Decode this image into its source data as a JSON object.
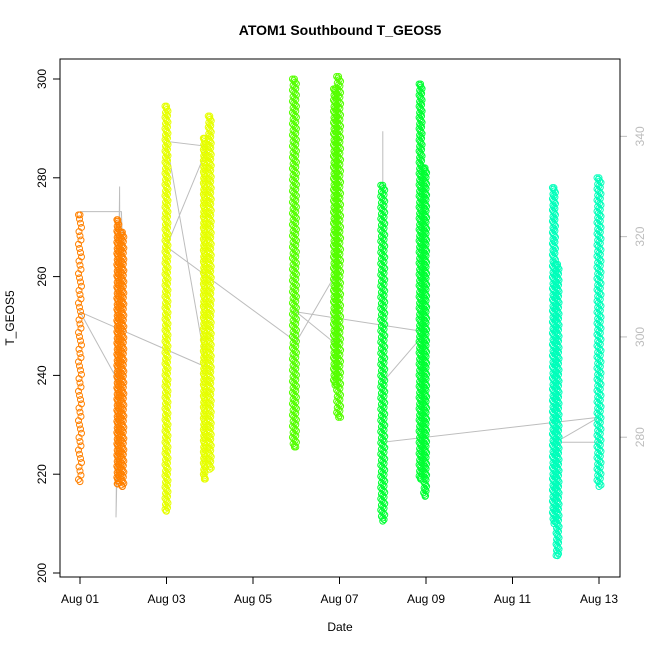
{
  "chart_data": {
    "type": "scatter",
    "title": "ATOM1 Southbound T_GEOS5",
    "xlabel": "Date",
    "ylabel": "T_GEOS5",
    "x_unit": "date (2016)",
    "xlim": [
      "2016-08-01",
      "2016-08-13"
    ],
    "ylim": [
      200,
      300
    ],
    "y2lim": [
      260,
      350
    ],
    "x_ticks": [
      {
        "date": "2016-08-01",
        "label": "Aug 01"
      },
      {
        "date": "2016-08-03",
        "label": "Aug 03"
      },
      {
        "date": "2016-08-05",
        "label": "Aug 05"
      },
      {
        "date": "2016-08-07",
        "label": "Aug 07"
      },
      {
        "date": "2016-08-09",
        "label": "Aug 09"
      },
      {
        "date": "2016-08-11",
        "label": "Aug 11"
      },
      {
        "date": "2016-08-13",
        "label": "Aug 13"
      }
    ],
    "y_ticks": [
      200,
      220,
      240,
      260,
      280,
      300
    ],
    "y2_ticks": [
      280,
      300,
      320,
      340
    ],
    "grid": false,
    "legend": "none",
    "series": [
      {
        "x": "2016-08-01 00:00",
        "y_min": 218.5,
        "y_max": 272.5,
        "color": "#FF8000",
        "width": 6,
        "style": "sparse"
      },
      {
        "x": "2016-08-01 21:00",
        "y_min": 218.0,
        "y_max": 271.5,
        "color": "#FF8000",
        "width": 5,
        "style": "dense"
      },
      {
        "x": "2016-08-01 23:30",
        "y_min": 217.5,
        "y_max": 269.0,
        "color": "#FF8000",
        "width": 6,
        "style": "dense"
      },
      {
        "x": "2016-08-03 00:00",
        "y_min": 212.5,
        "y_max": 294.5,
        "color": "#E6FF00",
        "width": 6,
        "style": "dense"
      },
      {
        "x": "2016-08-03 21:00",
        "y_min": 219.0,
        "y_max": 288.0,
        "color": "#E6FF00",
        "width": 5,
        "style": "dense"
      },
      {
        "x": "2016-08-04 00:00",
        "y_min": 221.0,
        "y_max": 292.5,
        "color": "#E6FF00",
        "width": 6,
        "style": "dense"
      },
      {
        "x": "2016-08-05 23:00",
        "y_min": 225.5,
        "y_max": 300.0,
        "color": "#55FF00",
        "width": 7,
        "style": "dense"
      },
      {
        "x": "2016-08-06 21:30",
        "y_min": 238.0,
        "y_max": 298.0,
        "color": "#55FF00",
        "width": 6,
        "style": "dense"
      },
      {
        "x": "2016-08-06 23:30",
        "y_min": 231.5,
        "y_max": 300.5,
        "color": "#55FF00",
        "width": 7,
        "style": "dense"
      },
      {
        "x": "2016-08-08 00:00",
        "y_min": 210.5,
        "y_max": 278.5,
        "color": "#00FF33",
        "width": 7,
        "style": "dense"
      },
      {
        "x": "2016-08-08 21:00",
        "y_min": 219.0,
        "y_max": 299.0,
        "color": "#00FF33",
        "width": 6,
        "style": "dense"
      },
      {
        "x": "2016-08-08 23:30",
        "y_min": 215.5,
        "y_max": 282.0,
        "color": "#00FF33",
        "width": 6,
        "style": "dense"
      },
      {
        "x": "2016-08-11 23:00",
        "y_min": 210.0,
        "y_max": 278.0,
        "color": "#00FFBB",
        "width": 6,
        "style": "dense"
      },
      {
        "x": "2016-08-12 01:00",
        "y_min": 203.5,
        "y_max": 262.5,
        "color": "#00FFBB",
        "width": 6,
        "style": "dense"
      },
      {
        "x": "2016-08-13 00:00",
        "y_min": 217.5,
        "y_max": 280.0,
        "color": "#00FFBB",
        "width": 7,
        "style": "dense"
      }
    ],
    "secondary_line": {
      "color": "#bdbdbd",
      "points": [
        {
          "x": "2016-08-01 00:00",
          "y2": 325
        },
        {
          "x": "2016-08-01 23:00",
          "y2": 325
        },
        {
          "x": "2016-08-01 23:30",
          "y2": 320
        },
        {
          "x": "2016-08-01 20:00",
          "y2": 264
        },
        {
          "x": "2016-08-01 22:00",
          "y2": 330
        },
        {
          "x": "2016-08-01 22:30",
          "y2": 272
        },
        {
          "x": "2016-08-01 23:00",
          "y2": 290
        },
        {
          "x": "2016-08-01 00:00",
          "y2": 305
        },
        {
          "x": "2016-08-03 22:00",
          "y2": 294
        },
        {
          "x": "2016-08-03 00:00",
          "y2": 339
        },
        {
          "x": "2016-08-03 23:00",
          "y2": 338
        },
        {
          "x": "2016-08-03 00:00",
          "y2": 318
        },
        {
          "x": "2016-08-06 00:00",
          "y2": 299
        },
        {
          "x": "2016-08-06 21:00",
          "y2": 312
        },
        {
          "x": "2016-08-06 23:30",
          "y2": 312
        },
        {
          "x": "2016-08-07 00:00",
          "y2": 298
        },
        {
          "x": "2016-08-06 00:00",
          "y2": 305
        },
        {
          "x": "2016-08-09 00:00",
          "y2": 301
        },
        {
          "x": "2016-08-08 00:00",
          "y2": 291
        },
        {
          "x": "2016-08-08 00:00",
          "y2": 341
        },
        {
          "x": "2016-08-08 00:00",
          "y2": 279
        },
        {
          "x": "2016-08-13 00:00",
          "y2": 284
        },
        {
          "x": "2016-08-12 00:00",
          "y2": 279
        },
        {
          "x": "2016-08-13 00:00",
          "y2": 279
        }
      ]
    }
  }
}
